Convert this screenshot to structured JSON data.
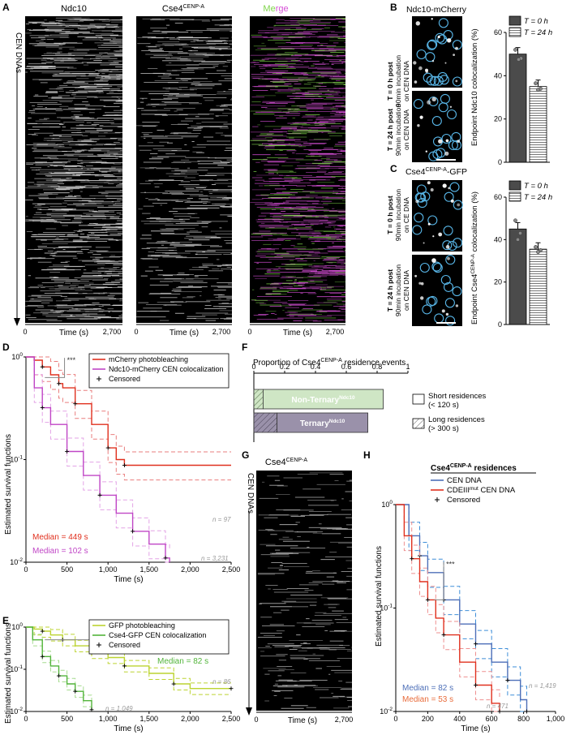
{
  "panels": {
    "A": {
      "letter": "A",
      "y_label": "CEN DNAs",
      "columns": [
        "Ndc10",
        "Cse4",
        "Merge"
      ],
      "cse4_sup": "CENP-A",
      "x_label": "Time (s)",
      "x_ticks": [
        "0",
        "2,700"
      ]
    },
    "B": {
      "letter": "B",
      "title": "Ndc10-mCherry",
      "row1": [
        "T = 0 h post",
        "90min incubation",
        "on CEN DNA"
      ],
      "row2": [
        "T = 24 h post",
        "90min incubation",
        "on CEN DNA"
      ],
      "ylabel": "Endpoint Ndc10 colocalization (%)",
      "yticks": [
        "0",
        "20",
        "40",
        "60"
      ],
      "legend": [
        "T = 0 h",
        "T = 24 h"
      ]
    },
    "C": {
      "letter": "C",
      "title": "Cse4",
      "title_sup": "CENP-A",
      "title_suffix": "-GFP",
      "row1": [
        "T = 0 h post",
        "90min incubation",
        "on CE DNA"
      ],
      "row2": [
        "T = 24 h post",
        "90min incubation",
        "on CEN DNA"
      ],
      "ylabel": "Endpoint Cse4",
      "ylabel_sup": "CENP-A",
      "ylabel_suffix": " colocalization (%)",
      "yticks": [
        "0",
        "20",
        "40",
        "60"
      ],
      "legend": [
        "T = 0 h",
        "T = 24 h"
      ]
    },
    "D": {
      "letter": "D",
      "ylabel": "Estimated survival functions",
      "xlabel": "Time (s)",
      "xticks": [
        "0",
        "500",
        "1,000",
        "1,500",
        "2,000",
        "2,500"
      ],
      "yticks": [
        "10",
        "10",
        "10"
      ],
      "ysup": [
        "0",
        "-1",
        "-2"
      ],
      "legend": [
        "mCherry photobleaching",
        "Ndc10-mCherry CEN colocalization",
        "Censored"
      ],
      "stars": "***",
      "median1": "Median = 449 s",
      "median2": "Median = 102 s",
      "n1": "n = 97",
      "n2": "n = 3,231"
    },
    "E": {
      "letter": "E",
      "ylabel": "Estimated survival functions",
      "xlabel": "Time (s)",
      "xticks": [
        "0",
        "500",
        "1,000",
        "1,500",
        "2,000",
        "2,500"
      ],
      "yticks": [
        "10",
        "10",
        "10"
      ],
      "ysup": [
        "0",
        "-1",
        "-2"
      ],
      "legend": [
        "GFP photobleaching",
        "Cse4-GFP CEN colocalization",
        "Censored"
      ],
      "stars": "***",
      "median1": "Median = 447 s",
      "median2": "Median = 82 s",
      "n1": "n = 86",
      "n2": "n = 1,049"
    },
    "F": {
      "letter": "F",
      "title": "Proportion of Cse4",
      "title_sup": "CENP-A",
      "title_suffix": " residence events",
      "xticks": [
        "0",
        "0.2",
        "0.4",
        "0.6",
        "0.8",
        "1"
      ],
      "bar1": "Non-Ternary",
      "bar1_sup": "Ndc10",
      "bar2": "Ternary",
      "bar2_sup": "Ndc10",
      "leg1": [
        "Short residences",
        "(< 120 s)"
      ],
      "leg2": [
        "Long residences",
        "(> 300 s)"
      ]
    },
    "G": {
      "letter": "G",
      "title": "Cse4",
      "title_sup": "CENP-A",
      "ylabel": "CEN DNAs",
      "xlabel": "Time (s)",
      "xticks": [
        "0",
        "2,700"
      ]
    },
    "H": {
      "letter": "H",
      "legend_title": "Cse4",
      "legend_title_sup": "CENP-A",
      "legend_title_suffix": " residences",
      "legend": [
        "CEN DNA",
        "CDEIII",
        "Censored"
      ],
      "legend2_sup": "mut",
      "legend2_suffix": " CEN DNA",
      "ylabel": "Estimated survival functions",
      "xlabel": "Time (s)",
      "xticks": [
        "0",
        "200",
        "400",
        "600",
        "800",
        "1,000"
      ],
      "yticks": [
        "10",
        "10",
        "10"
      ],
      "ysup": [
        "0",
        "-1",
        "-2"
      ],
      "stars": "***",
      "median1": "Median = 82 s",
      "median2": "Median = 53 s",
      "n1": "n = 1,419",
      "n2": "n = 471"
    }
  },
  "colors": {
    "red": "#e0301e",
    "pink": "#e97d7d",
    "magenta": "#c046c6",
    "lightmagenta": "#e3a3e6",
    "lime": "#bcd430",
    "green": "#52b43a",
    "lightgreen": "#a6dc8f",
    "blue": "#4d6fb8",
    "lightblue": "#3e8ed8",
    "salmon": "#ee8f8f",
    "merge_green": "#7fd44b",
    "merge_magenta": "#d54fd6",
    "ternary": "#9a91aa",
    "nonternary": "#cfe6c5",
    "bar_dark": "#4b4b4b"
  },
  "chart_data": [
    {
      "type": "bar",
      "panel": "B",
      "categories": [
        "T = 0 h",
        "T = 24 h"
      ],
      "values": [
        50,
        35
      ],
      "ylabel": "Endpoint Ndc10 colocalization (%)",
      "ylim": [
        0,
        60
      ]
    },
    {
      "type": "bar",
      "panel": "C",
      "categories": [
        "T = 0 h",
        "T = 24 h"
      ],
      "values": [
        45,
        35.5
      ],
      "ylabel": "Endpoint Cse4 colocalization (%)",
      "ylim": [
        0,
        60
      ]
    },
    {
      "type": "line",
      "panel": "D",
      "y_scale": "log",
      "xlim": [
        0,
        2500
      ],
      "ylim": [
        0.01,
        1
      ],
      "series": [
        {
          "name": "mCherry photobleaching",
          "x": [
            0,
            100,
            200,
            300,
            400,
            449,
            600,
            800,
            1000,
            1100,
            1200,
            2500
          ],
          "y": [
            1,
            0.93,
            0.8,
            0.67,
            0.55,
            0.5,
            0.35,
            0.22,
            0.13,
            0.1,
            0.088,
            0.088
          ]
        },
        {
          "name": "Ndc10-mCherry CEN colocalization",
          "x": [
            0,
            102,
            200,
            300,
            500,
            700,
            900,
            1100,
            1300,
            1500,
            1700,
            1750
          ],
          "y": [
            1,
            0.5,
            0.32,
            0.22,
            0.12,
            0.07,
            0.045,
            0.03,
            0.02,
            0.015,
            0.011,
            0.01
          ]
        }
      ]
    },
    {
      "type": "line",
      "panel": "E",
      "y_scale": "log",
      "xlim": [
        0,
        2500
      ],
      "ylim": [
        0.01,
        1
      ],
      "series": [
        {
          "name": "GFP photobleaching",
          "x": [
            0,
            100,
            200,
            300,
            447,
            600,
            800,
            1000,
            1200,
            1500,
            1800,
            2000,
            2500
          ],
          "y": [
            1,
            0.9,
            0.8,
            0.65,
            0.5,
            0.36,
            0.25,
            0.19,
            0.12,
            0.08,
            0.045,
            0.035,
            0.035
          ]
        },
        {
          "name": "Cse4-GFP CEN colocalization",
          "x": [
            0,
            82,
            200,
            300,
            400,
            500,
            600,
            700,
            800
          ],
          "y": [
            1,
            0.5,
            0.2,
            0.12,
            0.07,
            0.045,
            0.03,
            0.018,
            0.011
          ]
        }
      ]
    },
    {
      "type": "bar",
      "panel": "F",
      "orientation": "horizontal",
      "stacked": true,
      "categories": [
        "Non-Ternary Ndc10",
        "Ternary Ndc10"
      ],
      "series": [
        {
          "name": "Long residences",
          "values": [
            0.06,
            0.15
          ]
        },
        {
          "name": "Short residences",
          "values": [
            0.78,
            0.59
          ]
        }
      ],
      "xlim": [
        0,
        1
      ]
    },
    {
      "type": "line",
      "panel": "H",
      "y_scale": "log",
      "xlim": [
        0,
        1000
      ],
      "ylim": [
        0.01,
        1
      ],
      "series": [
        {
          "name": "CEN DNA",
          "x": [
            0,
            82,
            150,
            200,
            300,
            400,
            500,
            600,
            700,
            780,
            820
          ],
          "y": [
            1,
            0.5,
            0.32,
            0.22,
            0.12,
            0.07,
            0.045,
            0.03,
            0.02,
            0.013,
            0.01
          ]
        },
        {
          "name": "CDEIII mut CEN DNA",
          "x": [
            0,
            53,
            100,
            150,
            200,
            250,
            300,
            400,
            500,
            600,
            650
          ],
          "y": [
            1,
            0.5,
            0.3,
            0.18,
            0.12,
            0.08,
            0.055,
            0.03,
            0.018,
            0.012,
            0.01
          ]
        }
      ]
    }
  ]
}
